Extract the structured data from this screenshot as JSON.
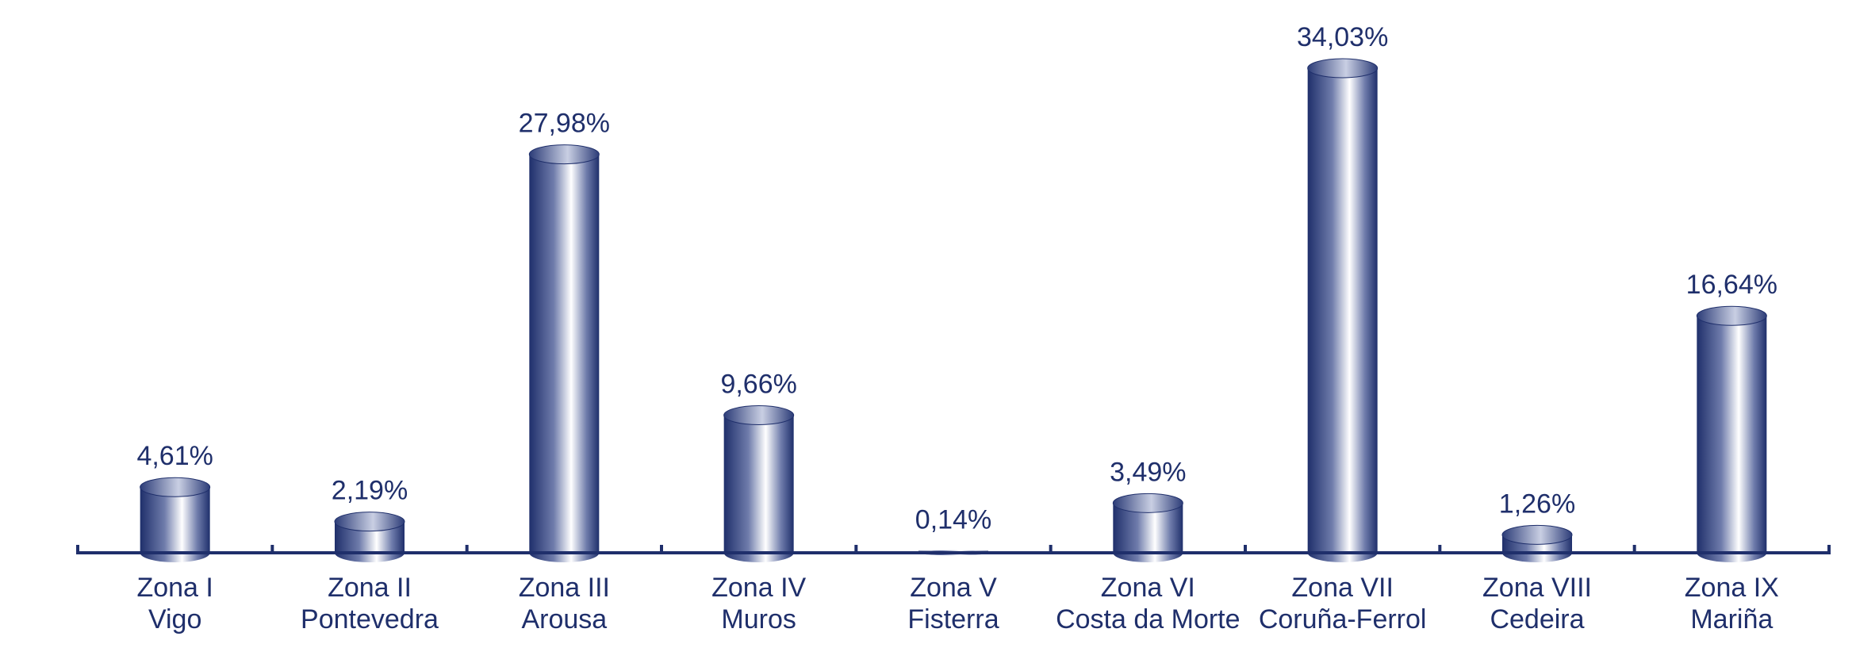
{
  "chart_data": {
    "type": "bar",
    "title": "",
    "xlabel": "",
    "ylabel": "",
    "categories": [
      [
        "Zona I",
        "Vigo"
      ],
      [
        "Zona II",
        "Pontevedra"
      ],
      [
        "Zona III",
        "Arousa"
      ],
      [
        "Zona IV",
        "Muros"
      ],
      [
        "Zona V",
        "Fisterra"
      ],
      [
        "Zona VI",
        "Costa da Morte"
      ],
      [
        "Zona VII",
        "Coruña-Ferrol"
      ],
      [
        "Zona VIII",
        "Cedeira"
      ],
      [
        "Zona IX",
        "Mariña"
      ]
    ],
    "values": [
      4.61,
      2.19,
      27.98,
      9.66,
      0.14,
      3.49,
      34.03,
      1.26,
      16.64
    ],
    "value_labels": [
      "4,61%",
      "2,19%",
      "27,98%",
      "9,66%",
      "0,14%",
      "3,49%",
      "34,03%",
      "1,26%",
      "16,64%"
    ],
    "ylim": [
      0,
      34.03
    ],
    "grid": false,
    "bar_style": "cylinder",
    "colors": {
      "bar_dark": "#1f2f6b",
      "bar_light": "#ffffff",
      "text": "#1f2f6b",
      "axis": "#1f2f6b"
    }
  }
}
